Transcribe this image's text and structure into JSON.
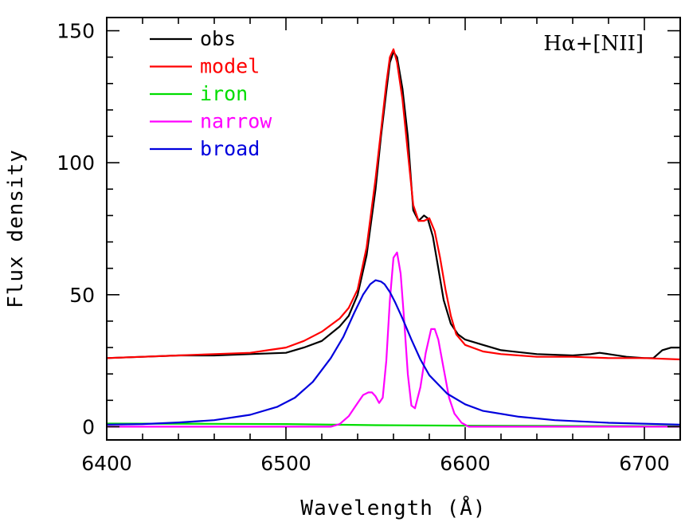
{
  "chart_data": {
    "type": "line",
    "title": "",
    "annotation": "Hα+[NII]",
    "xlabel": "Wavelength (Å)",
    "ylabel": "Flux density",
    "xlim": [
      6400,
      6720
    ],
    "ylim": [
      -5,
      155
    ],
    "x_ticks": [
      6400,
      6500,
      6600,
      6700
    ],
    "y_ticks": [
      0,
      50,
      100,
      150
    ],
    "legend_position": "top-left",
    "series": [
      {
        "name": "obs",
        "color": "#000000",
        "x": [
          6400,
          6420,
          6440,
          6460,
          6480,
          6500,
          6510,
          6520,
          6530,
          6535,
          6540,
          6545,
          6550,
          6553,
          6556,
          6558,
          6560,
          6562,
          6565,
          6568,
          6571,
          6574,
          6577,
          6579,
          6582,
          6585,
          6588,
          6592,
          6596,
          6600,
          6610,
          6620,
          6640,
          6660,
          6670,
          6675,
          6680,
          6690,
          6700,
          6705,
          6710,
          6715,
          6720
        ],
        "y": [
          26,
          26.5,
          27,
          27,
          27.5,
          28,
          30,
          32.5,
          38,
          42,
          50,
          65,
          90,
          110,
          127,
          138,
          142,
          140,
          128,
          110,
          82,
          78,
          80,
          79,
          72,
          60,
          48,
          39,
          35,
          33,
          31,
          29,
          27.5,
          27,
          27.5,
          28,
          27.5,
          26.5,
          26,
          26,
          29,
          30,
          30
        ]
      },
      {
        "name": "model",
        "color": "#ff0000",
        "x": [
          6400,
          6420,
          6440,
          6460,
          6480,
          6490,
          6500,
          6510,
          6520,
          6530,
          6535,
          6540,
          6545,
          6550,
          6553,
          6556,
          6558,
          6560,
          6562,
          6565,
          6568,
          6571,
          6574,
          6577,
          6580,
          6583,
          6586,
          6589,
          6592,
          6595,
          6600,
          6610,
          6620,
          6640,
          6660,
          6680,
          6700,
          6720
        ],
        "y": [
          26,
          26.5,
          27,
          27.5,
          28,
          29,
          30,
          32.5,
          36,
          41,
          45,
          52,
          68,
          94,
          112,
          130,
          140,
          143,
          138,
          124,
          104,
          84,
          78,
          78,
          79,
          74,
          64,
          52,
          42,
          35,
          31,
          28.5,
          27.5,
          26.5,
          26.5,
          26,
          26,
          25.5
        ]
      },
      {
        "name": "iron",
        "color": "#00dd00",
        "x": [
          6400,
          6460,
          6500,
          6550,
          6600,
          6650,
          6720
        ],
        "y": [
          1.2,
          1.1,
          1.0,
          0.6,
          0.4,
          0.3,
          0.2
        ]
      },
      {
        "name": "narrow",
        "color": "#ff00ff",
        "x": [
          6400,
          6525,
          6530,
          6535,
          6539,
          6543,
          6546,
          6548,
          6550,
          6552,
          6554,
          6556,
          6558,
          6560,
          6562,
          6564,
          6566,
          6568,
          6570,
          6572,
          6575,
          6578,
          6581,
          6583,
          6585,
          6588,
          6591,
          6594,
          6598,
          6602,
          6720
        ],
        "y": [
          0,
          0,
          1,
          4,
          8,
          12,
          13,
          13,
          11.5,
          9,
          11,
          25,
          48,
          64,
          66,
          58,
          40,
          20,
          8,
          7,
          15,
          28,
          37,
          37,
          33,
          22,
          11,
          5,
          1.5,
          0,
          0
        ]
      },
      {
        "name": "broad",
        "color": "#0000dd",
        "x": [
          6400,
          6420,
          6440,
          6460,
          6480,
          6495,
          6505,
          6515,
          6525,
          6532,
          6538,
          6543,
          6547,
          6550,
          6553,
          6555,
          6558,
          6561,
          6565,
          6570,
          6575,
          6580,
          6590,
          6600,
          6610,
          6630,
          6650,
          6680,
          6720
        ],
        "y": [
          0.8,
          1,
          1.6,
          2.5,
          4.5,
          7.5,
          11,
          17,
          26,
          34,
          43,
          50,
          54,
          55.5,
          55,
          54,
          51,
          47,
          41,
          33,
          25.5,
          19.5,
          12.5,
          8.5,
          6,
          3.8,
          2.5,
          1.5,
          0.8
        ]
      }
    ]
  }
}
